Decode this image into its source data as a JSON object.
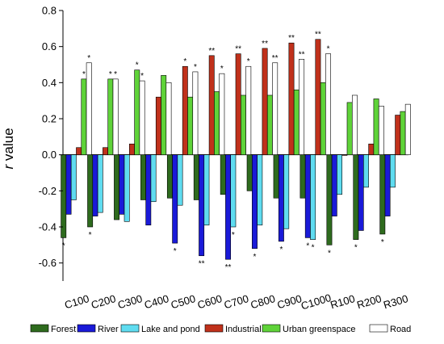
{
  "chart_data": {
    "type": "bar",
    "ylabel": "r value",
    "ylabel_italic_part": "r",
    "ylabel_rest": " value",
    "ylim": [
      -0.7,
      0.8
    ],
    "yticks": [
      0.8,
      0.6,
      0.4,
      0.2,
      0.0,
      -0.2,
      -0.4,
      -0.6
    ],
    "ytick_labels": [
      "0.8",
      "0.6",
      "0.4",
      "0.2",
      "0.0",
      "-0.2",
      "-0.4",
      "-0.6"
    ],
    "grid": false,
    "legend_placement": "bottom",
    "categories": [
      "C100",
      "C200",
      "C300",
      "C400",
      "C500",
      "C600",
      "C700",
      "C800",
      "C900",
      "C1000",
      "R100",
      "R200",
      "R300"
    ],
    "series": [
      {
        "name": "Forest",
        "color": "#2e6b1e",
        "values": [
          -0.46,
          -0.4,
          -0.36,
          -0.25,
          -0.24,
          -0.25,
          -0.22,
          -0.2,
          -0.24,
          -0.24,
          -0.5,
          -0.47,
          -0.44
        ],
        "significance": [
          "*",
          "*",
          "",
          "",
          "",
          "",
          "",
          "",
          "",
          "",
          "*",
          "*",
          "*"
        ]
      },
      {
        "name": "River",
        "color": "#1a1ad8",
        "values": [
          -0.33,
          -0.34,
          -0.33,
          -0.39,
          -0.49,
          -0.56,
          -0.58,
          -0.52,
          -0.48,
          -0.46,
          -0.34,
          -0.42,
          -0.34
        ],
        "significance": [
          "",
          "",
          "",
          "",
          "*",
          "**",
          "**",
          "*",
          "*",
          "*",
          "",
          "",
          ""
        ]
      },
      {
        "name": "Lake and pond",
        "color": "#5fdcf0",
        "values": [
          -0.25,
          -0.32,
          -0.37,
          -0.26,
          -0.28,
          -0.39,
          -0.4,
          -0.39,
          -0.41,
          -0.47,
          -0.22,
          -0.18,
          -0.18
        ],
        "significance": [
          "",
          "",
          "",
          "",
          "",
          "",
          "*",
          "",
          "",
          "*",
          "",
          "",
          ""
        ]
      },
      {
        "name": "Industrial",
        "color": "#c0311b",
        "values": [
          0.04,
          0.04,
          0.06,
          0.32,
          0.49,
          0.55,
          0.56,
          0.59,
          0.62,
          0.64,
          0.0,
          0.06,
          0.22
        ],
        "significance": [
          "",
          "",
          "",
          "",
          "*",
          "**",
          "**",
          "**",
          "**",
          "**",
          "",
          "",
          ""
        ]
      },
      {
        "name": "Urban greenspace",
        "color": "#5fd339",
        "values": [
          0.42,
          0.42,
          0.47,
          0.44,
          0.32,
          0.35,
          0.33,
          0.33,
          0.36,
          0.4,
          0.29,
          0.31,
          0.24
        ],
        "significance": [
          "*",
          "*",
          "*",
          "",
          "",
          "",
          "",
          "",
          "",
          "",
          "",
          "",
          ""
        ]
      },
      {
        "name": "Road",
        "color": "#ffffff",
        "values": [
          0.51,
          0.42,
          0.41,
          0.4,
          0.46,
          0.45,
          0.49,
          0.51,
          0.53,
          0.56,
          0.33,
          0.27,
          0.28
        ],
        "significance": [
          "*",
          "*",
          "*",
          "",
          "*",
          "*",
          "*",
          "**",
          "**",
          "*",
          "",
          "",
          ""
        ]
      }
    ]
  }
}
